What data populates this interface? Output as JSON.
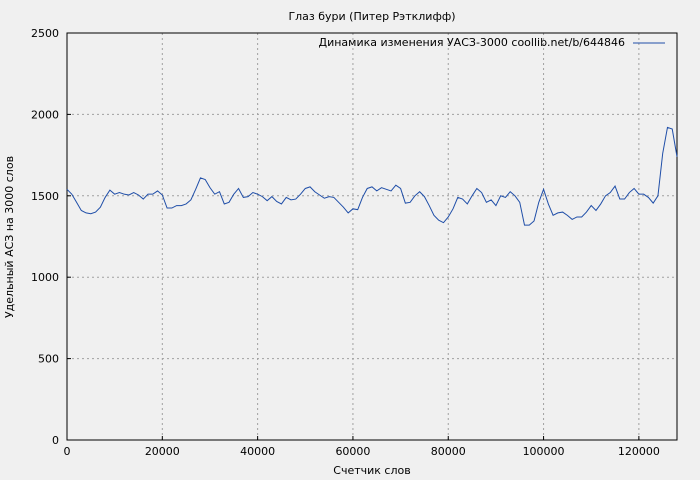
{
  "chart_data": {
    "type": "line",
    "title": "Глаз бури (Питер Рэтклифф)",
    "xlabel": "Счетчик слов",
    "ylabel": "Удельный АСЗ на 3000 слов",
    "xlim": [
      0,
      128000
    ],
    "ylim": [
      0,
      2500
    ],
    "xticks": [
      0,
      20000,
      40000,
      60000,
      80000,
      100000,
      120000
    ],
    "yticks": [
      0,
      500,
      1000,
      1500,
      2000,
      2500
    ],
    "grid": true,
    "legend": "top-right",
    "series": [
      {
        "name": "Динамика изменения УАСЗ-3000 coollib.net/b/644846",
        "color": "#1f4ea8",
        "x": [
          0,
          1000,
          2000,
          3000,
          4000,
          5000,
          6000,
          7000,
          8000,
          9000,
          10000,
          11000,
          12000,
          13000,
          14000,
          15000,
          16000,
          17000,
          18000,
          19000,
          20000,
          21000,
          22000,
          23000,
          24000,
          25000,
          26000,
          27000,
          28000,
          29000,
          30000,
          31000,
          32000,
          33000,
          34000,
          35000,
          36000,
          37000,
          38000,
          39000,
          40000,
          41000,
          42000,
          43000,
          44000,
          45000,
          46000,
          47000,
          48000,
          49000,
          50000,
          51000,
          52000,
          53000,
          54000,
          55000,
          56000,
          57000,
          58000,
          59000,
          60000,
          61000,
          62000,
          63000,
          64000,
          65000,
          66000,
          67000,
          68000,
          69000,
          70000,
          71000,
          72000,
          73000,
          74000,
          75000,
          76000,
          77000,
          78000,
          79000,
          80000,
          81000,
          82000,
          83000,
          84000,
          85000,
          86000,
          87000,
          88000,
          89000,
          90000,
          91000,
          92000,
          93000,
          94000,
          95000,
          96000,
          97000,
          98000,
          99000,
          100000,
          101000,
          102000,
          103000,
          104000,
          105000,
          106000,
          107000,
          108000,
          109000,
          110000,
          111000,
          112000,
          113000,
          114000,
          115000,
          116000,
          117000,
          118000,
          119000,
          120000,
          121000,
          122000,
          123000,
          124000,
          125000,
          126000,
          127000,
          128000
        ],
        "values": [
          1540,
          1510,
          1460,
          1410,
          1395,
          1390,
          1400,
          1430,
          1490,
          1535,
          1510,
          1520,
          1510,
          1505,
          1520,
          1505,
          1480,
          1510,
          1510,
          1530,
          1505,
          1425,
          1425,
          1440,
          1440,
          1450,
          1475,
          1540,
          1610,
          1600,
          1550,
          1510,
          1525,
          1450,
          1460,
          1510,
          1545,
          1490,
          1495,
          1520,
          1510,
          1495,
          1470,
          1495,
          1465,
          1450,
          1490,
          1475,
          1480,
          1510,
          1545,
          1555,
          1525,
          1505,
          1485,
          1495,
          1490,
          1460,
          1430,
          1395,
          1420,
          1415,
          1490,
          1545,
          1555,
          1530,
          1550,
          1540,
          1530,
          1565,
          1545,
          1455,
          1460,
          1500,
          1525,
          1495,
          1440,
          1380,
          1350,
          1335,
          1370,
          1420,
          1490,
          1480,
          1450,
          1500,
          1545,
          1520,
          1460,
          1475,
          1440,
          1500,
          1490,
          1525,
          1500,
          1460,
          1320,
          1320,
          1345,
          1460,
          1540,
          1450,
          1380,
          1395,
          1400,
          1380,
          1355,
          1370,
          1370,
          1400,
          1440,
          1410,
          1450,
          1500,
          1520,
          1560,
          1480,
          1480,
          1520,
          1545,
          1510,
          1510,
          1490,
          1455,
          1500,
          1760,
          1920,
          1910,
          1740
        ]
      }
    ]
  }
}
